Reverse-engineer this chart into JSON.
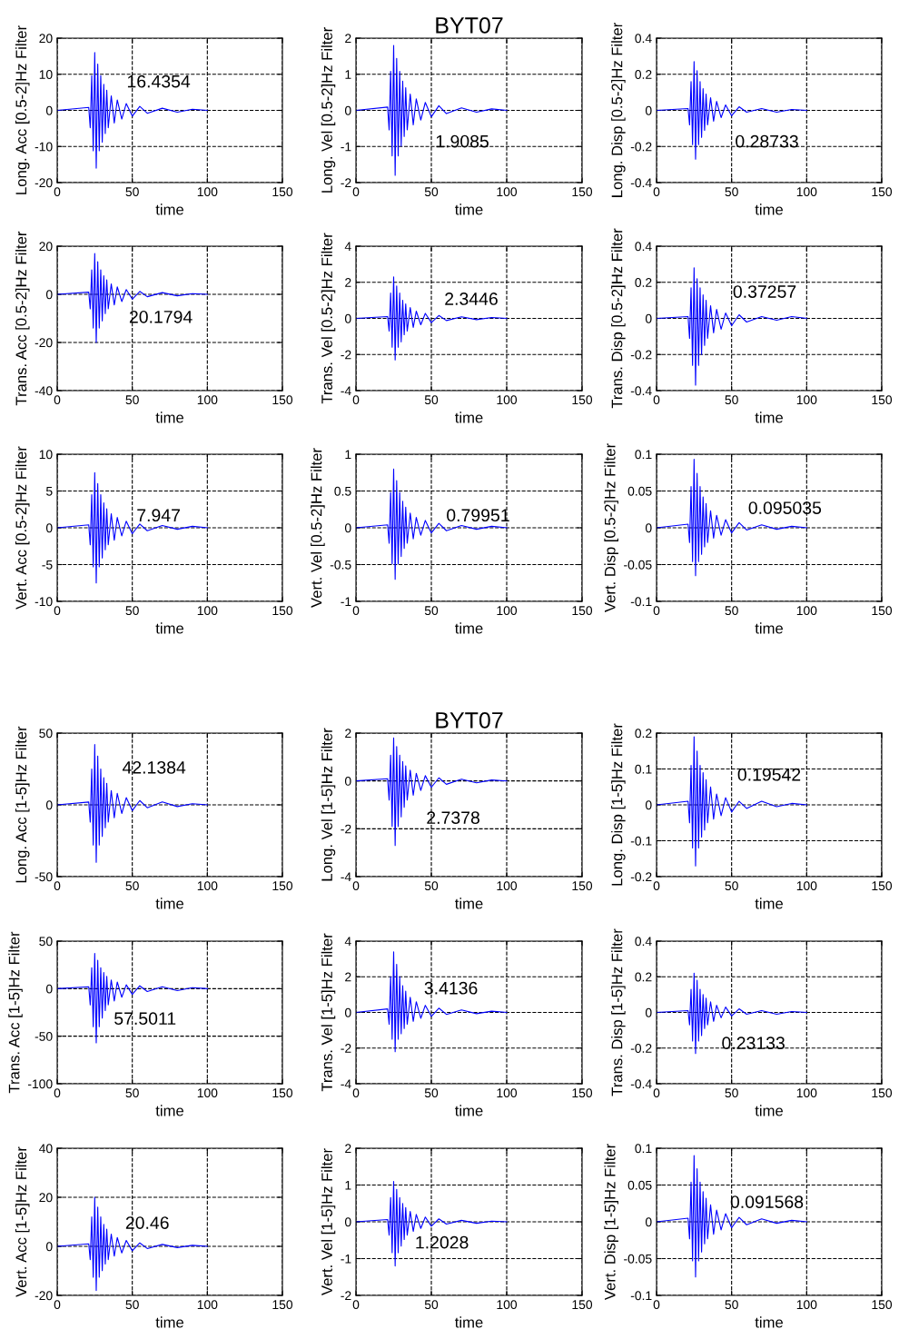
{
  "chart_data": [
    {
      "type": "line",
      "ylabel": "Long. Acc [0.5-2]Hz Filter",
      "xlabel": "time",
      "xlim": [
        0,
        150
      ],
      "xticks": [
        0,
        50,
        100,
        150
      ],
      "ylim": [
        -20,
        20
      ],
      "yticks": [
        -20,
        -10,
        0,
        10,
        20
      ],
      "grid": true,
      "color": "#0000ff",
      "annotations": [
        "16.4354"
      ],
      "x": [
        0,
        21,
        22,
        23,
        24,
        25,
        26,
        27,
        28,
        29,
        30,
        31,
        32,
        33,
        34,
        36,
        38,
        40,
        43,
        46,
        50,
        55,
        60,
        70,
        80,
        90,
        100
      ],
      "values": [
        0,
        0.8,
        -4.8,
        9.6,
        -11.2,
        16,
        -16,
        12.8,
        -11.2,
        9.6,
        -8.8,
        7.2,
        -6.4,
        5.6,
        -4.8,
        4,
        -3.5,
        2.9,
        -2.4,
        1.9,
        -1.6,
        1.1,
        -0.8,
        0.6,
        -0.5,
        0.3,
        0
      ]
    },
    {
      "type": "line",
      "title": "BYT07",
      "ylabel": "Long. Vel [0.5-2]Hz Filter",
      "xlabel": "time",
      "xlim": [
        0,
        150
      ],
      "xticks": [
        0,
        50,
        100,
        150
      ],
      "ylim": [
        -2,
        2
      ],
      "yticks": [
        -2,
        -1,
        0,
        1,
        2
      ],
      "grid": true,
      "color": "#0000ff",
      "annotations": [
        "1.9085"
      ],
      "x": [
        0,
        21,
        22,
        23,
        24,
        25,
        26,
        27,
        28,
        29,
        30,
        31,
        32,
        33,
        34,
        36,
        38,
        40,
        43,
        46,
        50,
        55,
        60,
        70,
        80,
        90,
        100
      ],
      "values": [
        0,
        0.09,
        -0.54,
        1.08,
        -1.26,
        1.8,
        -1.8,
        1.44,
        -1.26,
        1.08,
        -0.99,
        0.81,
        -0.72,
        0.63,
        -0.54,
        0.45,
        -0.4,
        0.32,
        -0.27,
        0.22,
        -0.18,
        0.13,
        -0.09,
        0.07,
        -0.05,
        0.04,
        0
      ]
    },
    {
      "type": "line",
      "ylabel": "Long. Disp [0.5-2]Hz Filter",
      "xlabel": "time",
      "xlim": [
        0,
        150
      ],
      "xticks": [
        0,
        50,
        100,
        150
      ],
      "ylim": [
        -0.4,
        0.4
      ],
      "yticks": [
        -0.4,
        -0.2,
        0,
        0.2,
        0.4
      ],
      "grid": true,
      "color": "#0000ff",
      "annotations": [
        "0.28733"
      ],
      "x": [
        0,
        21,
        22,
        23,
        24,
        25,
        26,
        27,
        28,
        29,
        30,
        31,
        32,
        33,
        34,
        36,
        38,
        40,
        43,
        46,
        50,
        55,
        60,
        70,
        80,
        90,
        100
      ],
      "values": [
        0,
        0.01,
        -0.08,
        0.16,
        -0.19,
        0.27,
        -0.27,
        0.22,
        -0.19,
        0.16,
        -0.15,
        0.12,
        -0.11,
        0.09,
        -0.08,
        0.07,
        -0.06,
        0.05,
        -0.04,
        0.03,
        -0.03,
        0.02,
        -0.01,
        0.01,
        -0.01,
        0.005,
        0
      ]
    },
    {
      "type": "line",
      "ylabel": "Trans. Acc [0.5-2]Hz Filter",
      "xlabel": "time",
      "xlim": [
        0,
        150
      ],
      "xticks": [
        0,
        50,
        100,
        150
      ],
      "ylim": [
        -40,
        20
      ],
      "yticks": [
        -40,
        -20,
        0,
        20
      ],
      "grid": true,
      "color": "#0000ff",
      "annotations": [
        "20.1794"
      ],
      "x": [
        0,
        21,
        22,
        23,
        24,
        25,
        26,
        27,
        28,
        29,
        30,
        31,
        32,
        33,
        34,
        36,
        38,
        40,
        43,
        46,
        50,
        55,
        60,
        70,
        80,
        90,
        100
      ],
      "values": [
        0,
        0.9,
        -6,
        10.2,
        -14,
        17,
        -20,
        13.6,
        -14,
        10.2,
        -11,
        7.7,
        -8,
        6,
        -6,
        4.3,
        -4.4,
        3.1,
        -3,
        2,
        -2,
        1.2,
        -1,
        0.7,
        -0.6,
        0.3,
        0
      ]
    },
    {
      "type": "line",
      "ylabel": "Trans. Vel [0.5-2]Hz Filter",
      "xlabel": "time",
      "xlim": [
        0,
        150
      ],
      "xticks": [
        0,
        50,
        100,
        150
      ],
      "ylim": [
        -4,
        4
      ],
      "yticks": [
        -4,
        -2,
        0,
        2,
        4
      ],
      "grid": true,
      "color": "#0000ff",
      "annotations": [
        "2.3446"
      ],
      "x": [
        0,
        21,
        22,
        23,
        24,
        25,
        26,
        27,
        28,
        29,
        30,
        31,
        32,
        33,
        34,
        36,
        38,
        40,
        43,
        46,
        50,
        55,
        60,
        70,
        80,
        90,
        100
      ],
      "values": [
        0,
        0.1,
        -0.7,
        1.4,
        -1.6,
        2.3,
        -2.3,
        1.8,
        -1.6,
        1.4,
        -1.3,
        1,
        -0.9,
        0.8,
        -0.7,
        0.6,
        -0.5,
        0.4,
        -0.35,
        0.28,
        -0.23,
        0.16,
        -0.12,
        0.09,
        -0.07,
        0.05,
        0
      ]
    },
    {
      "type": "line",
      "ylabel": "Trans. Disp [0.5-2]Hz Filter",
      "xlabel": "time",
      "xlim": [
        0,
        150
      ],
      "xticks": [
        0,
        50,
        100,
        150
      ],
      "ylim": [
        -0.4,
        0.4
      ],
      "yticks": [
        -0.4,
        -0.2,
        0,
        0.2,
        0.4
      ],
      "grid": true,
      "color": "#0000ff",
      "annotations": [
        "0.37257"
      ],
      "x": [
        0,
        21,
        22,
        23,
        24,
        25,
        26,
        27,
        28,
        29,
        30,
        31,
        32,
        33,
        34,
        36,
        38,
        40,
        43,
        46,
        50,
        55,
        60,
        70,
        80,
        90,
        100
      ],
      "values": [
        0,
        0.01,
        -0.11,
        0.17,
        -0.26,
        0.28,
        -0.37,
        0.22,
        -0.26,
        0.17,
        -0.2,
        0.13,
        -0.15,
        0.1,
        -0.11,
        0.07,
        -0.08,
        0.05,
        -0.06,
        0.03,
        -0.04,
        0.02,
        -0.02,
        0.01,
        -0.01,
        0.01,
        0
      ]
    },
    {
      "type": "line",
      "ylabel": "Vert. Acc [0.5-2]Hz Filter",
      "xlabel": "time",
      "xlim": [
        0,
        150
      ],
      "xticks": [
        0,
        50,
        100,
        150
      ],
      "ylim": [
        -10,
        10
      ],
      "yticks": [
        -10,
        -5,
        0,
        5,
        10
      ],
      "grid": true,
      "color": "#0000ff",
      "annotations": [
        "7.947"
      ],
      "x": [
        0,
        21,
        22,
        23,
        24,
        25,
        26,
        27,
        28,
        29,
        30,
        31,
        32,
        33,
        34,
        36,
        38,
        40,
        43,
        46,
        50,
        55,
        60,
        70,
        80,
        90,
        100
      ],
      "values": [
        0,
        0.4,
        -2.3,
        4.5,
        -5.3,
        7.5,
        -7.5,
        6,
        -5.3,
        4.5,
        -4.1,
        3.4,
        -3,
        2.6,
        -2.3,
        1.9,
        -1.7,
        1.4,
        -1.1,
        0.9,
        -0.8,
        0.5,
        -0.4,
        0.3,
        -0.2,
        0.2,
        0
      ]
    },
    {
      "type": "line",
      "ylabel": "Vert. Vel [0.5-2]Hz Filter",
      "xlabel": "time",
      "xlim": [
        0,
        150
      ],
      "xticks": [
        0,
        50,
        100,
        150
      ],
      "ylim": [
        -1,
        1
      ],
      "yticks": [
        -1,
        -0.5,
        0,
        0.5,
        1
      ],
      "grid": true,
      "color": "#0000ff",
      "annotations": [
        "0.79951"
      ],
      "x": [
        0,
        21,
        22,
        23,
        24,
        25,
        26,
        27,
        28,
        29,
        30,
        31,
        32,
        33,
        34,
        36,
        38,
        40,
        43,
        46,
        50,
        55,
        60,
        70,
        80,
        90,
        100
      ],
      "values": [
        0,
        0.04,
        -0.21,
        0.48,
        -0.49,
        0.8,
        -0.7,
        0.64,
        -0.49,
        0.48,
        -0.39,
        0.36,
        -0.28,
        0.28,
        -0.21,
        0.2,
        -0.15,
        0.14,
        -0.1,
        0.1,
        -0.07,
        0.06,
        -0.04,
        0.03,
        -0.02,
        0.02,
        0
      ]
    },
    {
      "type": "line",
      "ylabel": "Vert. Disp [0.5-2]Hz Filter",
      "xlabel": "time",
      "xlim": [
        0,
        150
      ],
      "xticks": [
        0,
        50,
        100,
        150
      ],
      "ylim": [
        -0.1,
        0.1
      ],
      "yticks": [
        -0.1,
        -0.05,
        0,
        0.05,
        0.1
      ],
      "grid": true,
      "color": "#0000ff",
      "annotations": [
        "0.095035"
      ],
      "x": [
        0,
        21,
        22,
        23,
        24,
        25,
        26,
        27,
        28,
        29,
        30,
        31,
        32,
        33,
        34,
        36,
        38,
        40,
        43,
        46,
        50,
        55,
        60,
        70,
        80,
        90,
        100
      ],
      "values": [
        0,
        0.005,
        -0.02,
        0.056,
        -0.046,
        0.093,
        -0.065,
        0.074,
        -0.046,
        0.056,
        -0.036,
        0.042,
        -0.026,
        0.033,
        -0.02,
        0.023,
        -0.014,
        0.017,
        -0.01,
        0.011,
        -0.007,
        0.007,
        -0.003,
        0.004,
        -0.002,
        0.002,
        0
      ]
    },
    {
      "type": "line",
      "ylabel": "Long. Acc [1-5]Hz Filter",
      "xlabel": "time",
      "xlim": [
        0,
        150
      ],
      "xticks": [
        0,
        50,
        100,
        150
      ],
      "ylim": [
        -50,
        50
      ],
      "yticks": [
        -50,
        0,
        50
      ],
      "grid": true,
      "color": "#0000ff",
      "annotations": [
        "42.1384"
      ],
      "x": [
        0,
        21,
        22,
        23,
        24,
        25,
        26,
        27,
        28,
        29,
        30,
        31,
        32,
        33,
        34,
        36,
        38,
        40,
        43,
        46,
        50,
        55,
        60,
        70,
        80,
        90,
        100
      ],
      "values": [
        0,
        2,
        -12,
        25,
        -28,
        42,
        -40,
        34,
        -28,
        25,
        -22,
        19,
        -16,
        15,
        -12,
        10,
        -9,
        8,
        -6,
        5,
        -4,
        3,
        -2,
        2,
        -1.2,
        0.8,
        0
      ]
    },
    {
      "type": "line",
      "title": "BYT07",
      "ylabel": "Long. Vel [1-5]Hz Filter",
      "xlabel": "time",
      "xlim": [
        0,
        150
      ],
      "xticks": [
        0,
        50,
        100,
        150
      ],
      "ylim": [
        -4,
        2
      ],
      "yticks": [
        -4,
        -2,
        0,
        2
      ],
      "grid": true,
      "color": "#0000ff",
      "annotations": [
        "2.7378"
      ],
      "x": [
        0,
        21,
        22,
        23,
        24,
        25,
        26,
        27,
        28,
        29,
        30,
        31,
        32,
        33,
        34,
        36,
        38,
        40,
        43,
        46,
        50,
        55,
        60,
        70,
        80,
        90,
        100
      ],
      "values": [
        0,
        0.09,
        -0.8,
        1.08,
        -1.9,
        1.8,
        -2.7,
        1.44,
        -1.9,
        1.08,
        -1.5,
        0.81,
        -1.1,
        0.63,
        -0.8,
        0.45,
        -0.6,
        0.32,
        -0.4,
        0.22,
        -0.27,
        0.13,
        -0.14,
        0.07,
        -0.08,
        0.04,
        0
      ]
    },
    {
      "type": "line",
      "ylabel": "Long. Disp [1-5]Hz Filter",
      "xlabel": "time",
      "xlim": [
        0,
        150
      ],
      "xticks": [
        0,
        50,
        100,
        150
      ],
      "ylim": [
        -0.2,
        0.2
      ],
      "yticks": [
        -0.2,
        -0.1,
        0,
        0.1,
        0.2
      ],
      "grid": true,
      "color": "#0000ff",
      "annotations": [
        "0.19542"
      ],
      "x": [
        0,
        21,
        22,
        23,
        24,
        25,
        26,
        27,
        28,
        29,
        30,
        31,
        32,
        33,
        34,
        36,
        38,
        40,
        43,
        46,
        50,
        55,
        60,
        70,
        80,
        90,
        100
      ],
      "values": [
        0,
        0.01,
        -0.05,
        0.11,
        -0.12,
        0.19,
        -0.17,
        0.15,
        -0.12,
        0.11,
        -0.09,
        0.09,
        -0.07,
        0.07,
        -0.05,
        0.05,
        -0.04,
        0.03,
        -0.03,
        0.02,
        -0.02,
        0.01,
        -0.01,
        0.01,
        -0.005,
        0.004,
        0
      ]
    },
    {
      "type": "line",
      "ylabel": "Trans. Acc [1-5]Hz Filter",
      "xlabel": "time",
      "xlim": [
        0,
        150
      ],
      "xticks": [
        0,
        50,
        100,
        150
      ],
      "ylim": [
        -100,
        50
      ],
      "yticks": [
        -100,
        -50,
        0,
        50
      ],
      "grid": true,
      "color": "#0000ff",
      "annotations": [
        "57.5011"
      ],
      "x": [
        0,
        21,
        22,
        23,
        24,
        25,
        26,
        27,
        28,
        29,
        30,
        31,
        32,
        33,
        34,
        36,
        38,
        40,
        43,
        46,
        50,
        55,
        60,
        70,
        80,
        90,
        100
      ],
      "values": [
        0,
        2,
        -17,
        22,
        -40,
        37,
        -57,
        30,
        -40,
        22,
        -31,
        17,
        -23,
        13,
        -17,
        9,
        -13,
        7,
        -9,
        4,
        -6,
        3,
        -3,
        2,
        -2,
        1,
        0
      ]
    },
    {
      "type": "line",
      "ylabel": "Trans. Vel [1-5]Hz Filter",
      "xlabel": "time",
      "xlim": [
        0,
        150
      ],
      "xticks": [
        0,
        50,
        100,
        150
      ],
      "ylim": [
        -4,
        4
      ],
      "yticks": [
        -4,
        -2,
        0,
        2,
        4
      ],
      "grid": true,
      "color": "#0000ff",
      "annotations": [
        "3.4136"
      ],
      "x": [
        0,
        21,
        22,
        23,
        24,
        25,
        26,
        27,
        28,
        29,
        30,
        31,
        32,
        33,
        34,
        36,
        38,
        40,
        43,
        46,
        50,
        55,
        60,
        70,
        80,
        90,
        100
      ],
      "values": [
        0,
        0.2,
        -0.66,
        2,
        -1.5,
        3.4,
        -2.2,
        2.7,
        -1.5,
        2,
        -1.2,
        1.5,
        -0.9,
        1.2,
        -0.66,
        0.85,
        -0.5,
        0.6,
        -0.33,
        0.4,
        -0.22,
        0.24,
        -0.11,
        0.14,
        -0.07,
        0.07,
        0
      ]
    },
    {
      "type": "line",
      "ylabel": "Trans. Disp [1-5]Hz Filter",
      "xlabel": "time",
      "xlim": [
        0,
        150
      ],
      "xticks": [
        0,
        50,
        100,
        150
      ],
      "ylim": [
        -0.4,
        0.4
      ],
      "yticks": [
        -0.4,
        -0.2,
        0,
        0.2,
        0.4
      ],
      "grid": true,
      "color": "#0000ff",
      "annotations": [
        "0.23133"
      ],
      "x": [
        0,
        21,
        22,
        23,
        24,
        25,
        26,
        27,
        28,
        29,
        30,
        31,
        32,
        33,
        34,
        36,
        38,
        40,
        43,
        46,
        50,
        55,
        60,
        70,
        80,
        90,
        100
      ],
      "values": [
        0,
        0.01,
        -0.07,
        0.13,
        -0.16,
        0.22,
        -0.23,
        0.18,
        -0.16,
        0.13,
        -0.13,
        0.1,
        -0.09,
        0.08,
        -0.07,
        0.06,
        -0.05,
        0.04,
        -0.03,
        0.03,
        -0.02,
        0.02,
        -0.01,
        0.01,
        -0.01,
        0.005,
        0
      ]
    },
    {
      "type": "line",
      "ylabel": "Vert. Acc [1-5]Hz Filter",
      "xlabel": "time",
      "xlim": [
        0,
        150
      ],
      "xticks": [
        0,
        50,
        100,
        150
      ],
      "ylim": [
        -20,
        40
      ],
      "yticks": [
        -20,
        0,
        20,
        40
      ],
      "grid": true,
      "color": "#0000ff",
      "annotations": [
        "20.46"
      ],
      "x": [
        0,
        21,
        22,
        23,
        24,
        25,
        26,
        27,
        28,
        29,
        30,
        31,
        32,
        33,
        34,
        36,
        38,
        40,
        43,
        46,
        50,
        55,
        60,
        70,
        80,
        90,
        100
      ],
      "values": [
        0,
        1,
        -5.4,
        12,
        -12.6,
        20,
        -18,
        16,
        -12.6,
        12,
        -9.9,
        9,
        -7.2,
        7,
        -5.4,
        5,
        -4,
        3.6,
        -2.7,
        2.4,
        -1.8,
        1.4,
        -0.9,
        0.8,
        -0.5,
        0.4,
        0
      ]
    },
    {
      "type": "line",
      "ylabel": "Vert. Vel [1-5]Hz Filter",
      "xlabel": "time",
      "xlim": [
        0,
        150
      ],
      "xticks": [
        0,
        50,
        100,
        150
      ],
      "ylim": [
        -2,
        2
      ],
      "yticks": [
        -2,
        -1,
        0,
        1,
        2
      ],
      "grid": true,
      "color": "#0000ff",
      "annotations": [
        "1.2028"
      ],
      "x": [
        0,
        21,
        22,
        23,
        24,
        25,
        26,
        27,
        28,
        29,
        30,
        31,
        32,
        33,
        34,
        36,
        38,
        40,
        43,
        46,
        50,
        55,
        60,
        70,
        80,
        90,
        100
      ],
      "values": [
        0,
        0.06,
        -0.36,
        0.66,
        -0.84,
        1.1,
        -1.2,
        0.88,
        -0.84,
        0.66,
        -0.66,
        0.5,
        -0.48,
        0.39,
        -0.36,
        0.28,
        -0.26,
        0.2,
        -0.18,
        0.13,
        -0.12,
        0.08,
        -0.06,
        0.04,
        -0.04,
        0.02,
        0
      ]
    },
    {
      "type": "line",
      "ylabel": "Vert. Disp [1-5]Hz Filter",
      "xlabel": "time",
      "xlim": [
        0,
        150
      ],
      "xticks": [
        0,
        50,
        100,
        150
      ],
      "ylim": [
        -0.1,
        0.1
      ],
      "yticks": [
        -0.1,
        -0.05,
        0,
        0.05,
        0.1
      ],
      "grid": true,
      "color": "#0000ff",
      "annotations": [
        "0.091568"
      ],
      "x": [
        0,
        21,
        22,
        23,
        24,
        25,
        26,
        27,
        28,
        29,
        30,
        31,
        32,
        33,
        34,
        36,
        38,
        40,
        43,
        46,
        50,
        55,
        60,
        70,
        80,
        90,
        100
      ],
      "values": [
        0,
        0.005,
        -0.023,
        0.054,
        -0.053,
        0.09,
        -0.075,
        0.072,
        -0.053,
        0.054,
        -0.041,
        0.041,
        -0.03,
        0.032,
        -0.023,
        0.023,
        -0.017,
        0.016,
        -0.011,
        0.011,
        -0.008,
        0.006,
        -0.004,
        0.004,
        -0.002,
        0.002,
        0
      ]
    }
  ]
}
